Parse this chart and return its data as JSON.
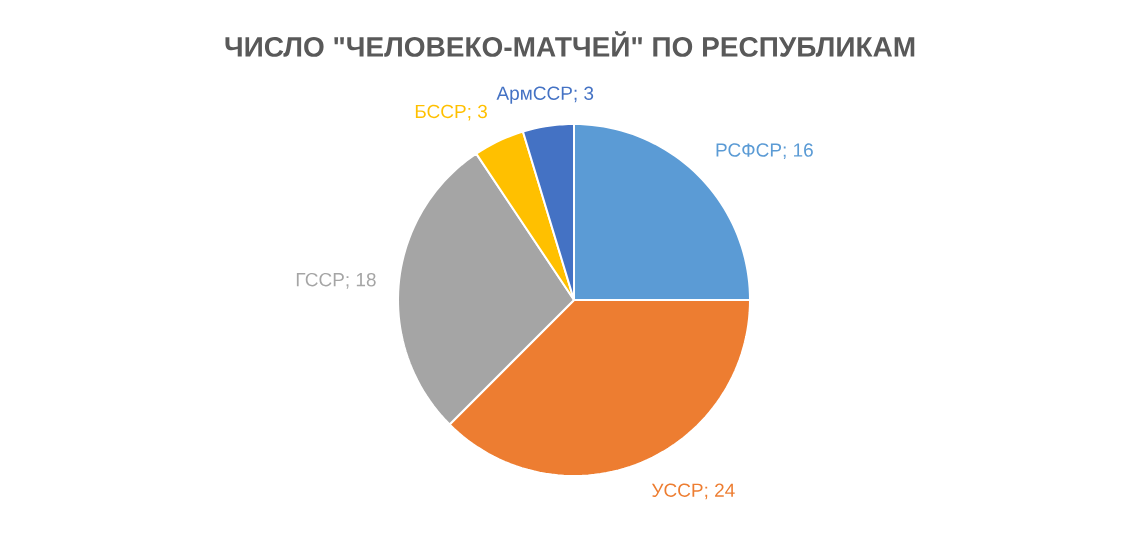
{
  "chart_data": {
    "type": "pie",
    "title": "ЧИСЛО \"ЧЕЛОВЕКО-МАТЧЕЙ\" ПО РЕСПУБЛИКАМ",
    "categories": [
      "РСФСР",
      "УССР",
      "ГССР",
      "БССР",
      "АрмССР"
    ],
    "values": [
      16,
      24,
      18,
      3,
      3
    ],
    "colors": [
      "#5b9bd5",
      "#ed7d31",
      "#a5a5a5",
      "#ffc000",
      "#4472c4"
    ],
    "value_labels": [
      "; 16",
      "; 24",
      "; 18",
      "; 3",
      "; 3"
    ]
  }
}
